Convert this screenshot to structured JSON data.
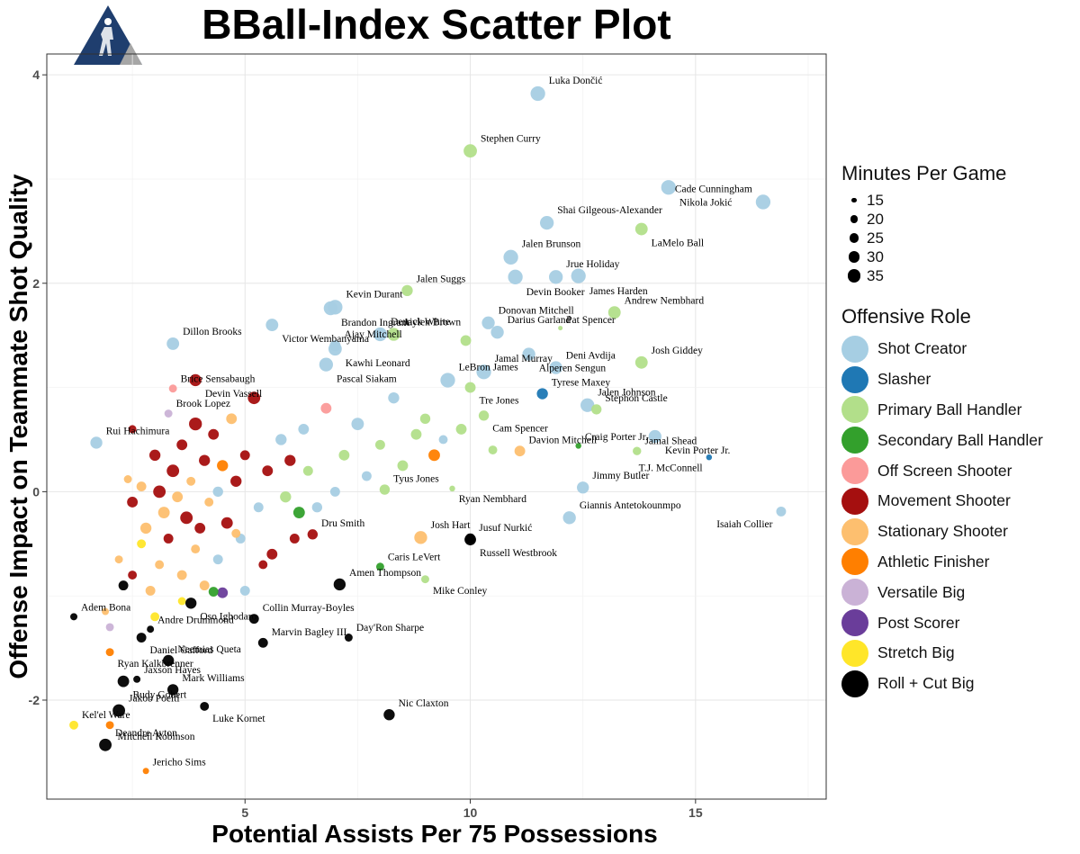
{
  "title": "BBall-Index Scatter Plot",
  "logo": {
    "icon": "basketball-player-icon",
    "colors": [
      "#1f3e6e",
      "#a6a6a6"
    ]
  },
  "legend": {
    "size_title": "Minutes Per Game",
    "size_items": [
      15,
      20,
      25,
      30,
      35
    ],
    "role_title": "Offensive Role",
    "roles": [
      {
        "label": "Shot Creator",
        "color": "#a6cee3"
      },
      {
        "label": "Slasher",
        "color": "#1f78b4"
      },
      {
        "label": "Primary Ball Handler",
        "color": "#b2df8a"
      },
      {
        "label": "Secondary Ball Handler",
        "color": "#33a02c"
      },
      {
        "label": "Off Screen Shooter",
        "color": "#fb9a99"
      },
      {
        "label": "Movement Shooter",
        "color": "#a50f0f"
      },
      {
        "label": "Stationary Shooter",
        "color": "#fdbf6f"
      },
      {
        "label": "Athletic Finisher",
        "color": "#ff7f00"
      },
      {
        "label": "Versatile Big",
        "color": "#cab2d6"
      },
      {
        "label": "Post Scorer",
        "color": "#6a3d9a"
      },
      {
        "label": "Stretch Big",
        "color": "#ffe629"
      },
      {
        "label": "Roll + Cut Big",
        "color": "#000000"
      }
    ]
  },
  "chart_data": {
    "type": "scatter",
    "title": "BBall-Index Scatter Plot",
    "xlabel": "Potential Assists Per 75 Possessions",
    "ylabel": "Offense Impact on Teammate Shot Quality",
    "xlim": [
      0.6,
      17.9
    ],
    "ylim": [
      -2.95,
      4.2
    ],
    "xticks": [
      5,
      10,
      15
    ],
    "yticks": [
      -2,
      0,
      2,
      4
    ],
    "grid": true,
    "legend_position": "right",
    "labeled_points": [
      {
        "name": "Luka Dončić",
        "x": 11.5,
        "y": 3.82,
        "role": "Shot Creator",
        "mpg": 35
      },
      {
        "name": "Stephen Curry",
        "x": 10.0,
        "y": 3.27,
        "role": "Primary Ball Handler",
        "mpg": 32
      },
      {
        "name": "Nikola Jokić",
        "x": 14.4,
        "y": 2.92,
        "role": "Shot Creator",
        "mpg": 35
      },
      {
        "name": "Cade Cunningham",
        "x": 16.5,
        "y": 2.78,
        "role": "Shot Creator",
        "mpg": 35
      },
      {
        "name": "Shai Gilgeous-Alexander",
        "x": 11.7,
        "y": 2.58,
        "role": "Shot Creator",
        "mpg": 33
      },
      {
        "name": "LaMelo Ball",
        "x": 13.8,
        "y": 2.52,
        "role": "Primary Ball Handler",
        "mpg": 30
      },
      {
        "name": "Jalen Brunson",
        "x": 10.9,
        "y": 2.25,
        "role": "Shot Creator",
        "mpg": 35
      },
      {
        "name": "Jrue Holiday",
        "x": 11.9,
        "y": 2.06,
        "role": "Shot Creator",
        "mpg": 33
      },
      {
        "name": "James Harden",
        "x": 12.4,
        "y": 2.07,
        "role": "Shot Creator",
        "mpg": 35
      },
      {
        "name": "Andrew Nembhard",
        "x": 13.2,
        "y": 1.72,
        "role": "Primary Ball Handler",
        "mpg": 30
      },
      {
        "name": "Jalen Suggs",
        "x": 8.6,
        "y": 1.93,
        "role": "Primary Ball Handler",
        "mpg": 27
      },
      {
        "name": "Devin Booker",
        "x": 11.0,
        "y": 2.06,
        "role": "Shot Creator",
        "mpg": 35
      },
      {
        "name": "Donovan Mitchell",
        "x": 10.4,
        "y": 1.62,
        "role": "Shot Creator",
        "mpg": 31
      },
      {
        "name": "Kevin Durant",
        "x": 7.0,
        "y": 1.77,
        "role": "Shot Creator",
        "mpg": 35
      },
      {
        "name": "Brandon Ingram",
        "x": 6.9,
        "y": 1.76,
        "role": "Shot Creator",
        "mpg": 33
      },
      {
        "name": "Darius Garland",
        "x": 10.6,
        "y": 1.53,
        "role": "Shot Creator",
        "mpg": 31
      },
      {
        "name": "Pat Spencer",
        "x": 12.0,
        "y": 1.57,
        "role": "Primary Ball Handler",
        "mpg": 12
      },
      {
        "name": "Victor Wembanyama",
        "x": 5.6,
        "y": 1.6,
        "role": "Shot Creator",
        "mpg": 30
      },
      {
        "name": "Jaylen Brown",
        "x": 8.3,
        "y": 1.51,
        "role": "Primary Ball Handler",
        "mpg": 31
      },
      {
        "name": "Ajay Mitchell",
        "x": 7.0,
        "y": 1.4,
        "role": "Shot Creator",
        "mpg": 27
      },
      {
        "name": "Alperen Sengun",
        "x": 11.3,
        "y": 1.32,
        "role": "Shot Creator",
        "mpg": 31
      },
      {
        "name": "Derrick White",
        "x": 8.0,
        "y": 1.51,
        "role": "Shot Creator",
        "mpg": 33
      },
      {
        "name": "Dillon Brooks",
        "x": 3.4,
        "y": 1.42,
        "role": "Shot Creator",
        "mpg": 30
      },
      {
        "name": "Kawhi Leonard",
        "x": 7.0,
        "y": 1.37,
        "role": "Shot Creator",
        "mpg": 32
      },
      {
        "name": "Deni Avdija",
        "x": 11.9,
        "y": 1.19,
        "role": "Shot Creator",
        "mpg": 31
      },
      {
        "name": "Josh Giddey",
        "x": 13.8,
        "y": 1.24,
        "role": "Primary Ball Handler",
        "mpg": 30
      },
      {
        "name": "Pascal Siakam",
        "x": 6.8,
        "y": 1.22,
        "role": "Shot Creator",
        "mpg": 33
      },
      {
        "name": "Jamal Murray",
        "x": 10.3,
        "y": 1.15,
        "role": "Shot Creator",
        "mpg": 35
      },
      {
        "name": "LeBron James",
        "x": 9.5,
        "y": 1.07,
        "role": "Shot Creator",
        "mpg": 35
      },
      {
        "name": "Devin Vassell",
        "x": 3.9,
        "y": 1.07,
        "role": "Movement Shooter",
        "mpg": 29
      },
      {
        "name": "Tyrese Maxey",
        "x": 11.6,
        "y": 0.94,
        "role": "Slasher",
        "mpg": 27
      },
      {
        "name": "Jalen Johnson",
        "x": 12.6,
        "y": 0.83,
        "role": "Shot Creator",
        "mpg": 33
      },
      {
        "name": "Tre Jones",
        "x": 10.0,
        "y": 1.0,
        "role": "Primary Ball Handler",
        "mpg": 26
      },
      {
        "name": "Brice Sensabaugh",
        "x": 3.4,
        "y": 0.99,
        "role": "Off Screen Shooter",
        "mpg": 20
      },
      {
        "name": "Stephon Castle",
        "x": 12.8,
        "y": 0.79,
        "role": "Primary Ball Handler",
        "mpg": 25
      },
      {
        "name": "Cam Spencer",
        "x": 10.3,
        "y": 0.73,
        "role": "Primary Ball Handler",
        "mpg": 25
      },
      {
        "name": "Brook Lopez",
        "x": 3.3,
        "y": 0.75,
        "role": "Versatile Big",
        "mpg": 20
      },
      {
        "name": "Craig Porter Jr.",
        "x": 12.4,
        "y": 0.44,
        "role": "Secondary Ball Handler",
        "mpg": 15
      },
      {
        "name": "Kevin Porter Jr.",
        "x": 14.1,
        "y": 0.53,
        "role": "Shot Creator",
        "mpg": 31
      },
      {
        "name": "Rui Hachimura",
        "x": 1.7,
        "y": 0.47,
        "role": "Shot Creator",
        "mpg": 29
      },
      {
        "name": "Jamal Shead",
        "x": 13.7,
        "y": 0.39,
        "role": "Primary Ball Handler",
        "mpg": 21
      },
      {
        "name": "T.J. McConnell",
        "x": 15.3,
        "y": 0.33,
        "role": "Slasher",
        "mpg": 15
      },
      {
        "name": "Davion Mitchell",
        "x": 11.1,
        "y": 0.39,
        "role": "Stationary Shooter",
        "mpg": 26
      },
      {
        "name": "Jimmy Butler",
        "x": 12.5,
        "y": 0.04,
        "role": "Shot Creator",
        "mpg": 29
      },
      {
        "name": "Ryan Nembhard",
        "x": 9.6,
        "y": 0.03,
        "role": "Primary Ball Handler",
        "mpg": 15
      },
      {
        "name": "Giannis Antetokounmpo",
        "x": 12.2,
        "y": -0.25,
        "role": "Shot Creator",
        "mpg": 31
      },
      {
        "name": "Tyus Jones",
        "x": 8.1,
        "y": 0.02,
        "role": "Primary Ball Handler",
        "mpg": 25
      },
      {
        "name": "Isaiah Collier",
        "x": 16.9,
        "y": -0.19,
        "role": "Shot Creator",
        "mpg": 24
      },
      {
        "name": "Dru Smith",
        "x": 6.5,
        "y": -0.41,
        "role": "Movement Shooter",
        "mpg": 25
      },
      {
        "name": "Josh Hart",
        "x": 8.9,
        "y": -0.44,
        "role": "Stationary Shooter",
        "mpg": 31
      },
      {
        "name": "Russell Westbrook",
        "x": 10.0,
        "y": -0.46,
        "role": "Roll + Cut Big",
        "mpg": 28
      },
      {
        "name": "Jusuf Nurkić",
        "x": 10.0,
        "y": -0.45,
        "role": "Roll + Cut Big",
        "mpg": 25
      },
      {
        "name": "Caris LeVert",
        "x": 8.0,
        "y": -0.72,
        "role": "Secondary Ball Handler",
        "mpg": 20
      },
      {
        "name": "Mike Conley",
        "x": 9.0,
        "y": -0.84,
        "role": "Primary Ball Handler",
        "mpg": 20
      },
      {
        "name": "Amen Thompson",
        "x": 7.1,
        "y": -0.89,
        "role": "Roll + Cut Big",
        "mpg": 29
      },
      {
        "name": "Adem Bona",
        "x": 1.2,
        "y": -1.2,
        "role": "Roll + Cut Big",
        "mpg": 18
      },
      {
        "name": "Oso Ighodaro",
        "x": 3.8,
        "y": -1.07,
        "role": "Roll + Cut Big",
        "mpg": 27
      },
      {
        "name": "Collin Murray-Boyles",
        "x": 5.2,
        "y": -1.22,
        "role": "Roll + Cut Big",
        "mpg": 24
      },
      {
        "name": "Andre Drummond",
        "x": 2.9,
        "y": -1.32,
        "role": "Roll + Cut Big",
        "mpg": 18
      },
      {
        "name": "Daniel Gafford",
        "x": 2.7,
        "y": -1.4,
        "role": "Roll + Cut Big",
        "mpg": 24
      },
      {
        "name": "Day'Ron Sharpe",
        "x": 7.3,
        "y": -1.4,
        "role": "Roll + Cut Big",
        "mpg": 20
      },
      {
        "name": "Marvin Bagley III",
        "x": 5.4,
        "y": -1.45,
        "role": "Roll + Cut Big",
        "mpg": 24
      },
      {
        "name": "Ryan Kalkbrenner",
        "x": 2.0,
        "y": -1.54,
        "role": "Athletic Finisher",
        "mpg": 20
      },
      {
        "name": "Neemias Queta",
        "x": 3.3,
        "y": -1.62,
        "role": "Roll + Cut Big",
        "mpg": 27
      },
      {
        "name": "Jaxson Hayes",
        "x": 2.6,
        "y": -1.8,
        "role": "Roll + Cut Big",
        "mpg": 18
      },
      {
        "name": "Rudy Gobert",
        "x": 2.3,
        "y": -1.82,
        "role": "Roll + Cut Big",
        "mpg": 28
      },
      {
        "name": "Mark Williams",
        "x": 3.4,
        "y": -1.9,
        "role": "Roll + Cut Big",
        "mpg": 27
      },
      {
        "name": "Jakob Poeltl",
        "x": 2.2,
        "y": -2.1,
        "role": "Roll + Cut Big",
        "mpg": 30
      },
      {
        "name": "Luke Kornet",
        "x": 4.1,
        "y": -2.06,
        "role": "Roll + Cut Big",
        "mpg": 22
      },
      {
        "name": "Kel'el Ware",
        "x": 1.2,
        "y": -2.24,
        "role": "Stretch Big",
        "mpg": 22
      },
      {
        "name": "Nic Claxton",
        "x": 8.2,
        "y": -2.14,
        "role": "Roll + Cut Big",
        "mpg": 27
      },
      {
        "name": "Mitchell Robinson",
        "x": 2.0,
        "y": -2.24,
        "role": "Athletic Finisher",
        "mpg": 20
      },
      {
        "name": "Deandre Ayton",
        "x": 1.9,
        "y": -2.43,
        "role": "Roll + Cut Big",
        "mpg": 30
      },
      {
        "name": "Jericho Sims",
        "x": 2.8,
        "y": -2.68,
        "role": "Athletic Finisher",
        "mpg": 16
      }
    ],
    "other_points": [
      {
        "x": 2.5,
        "y": 0.6,
        "role": "Movement Shooter",
        "mpg": 20
      },
      {
        "x": 2.4,
        "y": 0.12,
        "role": "Stationary Shooter",
        "mpg": 20
      },
      {
        "x": 2.5,
        "y": -0.1,
        "role": "Movement Shooter",
        "mpg": 26
      },
      {
        "x": 2.7,
        "y": 0.05,
        "role": "Stationary Shooter",
        "mpg": 24
      },
      {
        "x": 2.8,
        "y": -0.35,
        "role": "Stationary Shooter",
        "mpg": 27
      },
      {
        "x": 3.0,
        "y": 0.35,
        "role": "Movement Shooter",
        "mpg": 27
      },
      {
        "x": 3.1,
        "y": 0.0,
        "role": "Movement Shooter",
        "mpg": 30
      },
      {
        "x": 3.2,
        "y": -0.2,
        "role": "Stationary Shooter",
        "mpg": 28
      },
      {
        "x": 3.4,
        "y": 0.2,
        "role": "Movement Shooter",
        "mpg": 30
      },
      {
        "x": 3.5,
        "y": -0.05,
        "role": "Stationary Shooter",
        "mpg": 26
      },
      {
        "x": 3.6,
        "y": 0.45,
        "role": "Movement Shooter",
        "mpg": 26
      },
      {
        "x": 3.7,
        "y": -0.25,
        "role": "Movement Shooter",
        "mpg": 30
      },
      {
        "x": 3.8,
        "y": 0.1,
        "role": "Stationary Shooter",
        "mpg": 22
      },
      {
        "x": 3.9,
        "y": 0.65,
        "role": "Movement Shooter",
        "mpg": 31
      },
      {
        "x": 4.0,
        "y": -0.35,
        "role": "Movement Shooter",
        "mpg": 26
      },
      {
        "x": 4.1,
        "y": 0.3,
        "role": "Movement Shooter",
        "mpg": 27
      },
      {
        "x": 4.2,
        "y": -0.1,
        "role": "Stationary Shooter",
        "mpg": 22
      },
      {
        "x": 4.3,
        "y": 0.55,
        "role": "Movement Shooter",
        "mpg": 26
      },
      {
        "x": 4.4,
        "y": 0.0,
        "role": "Shot Creator",
        "mpg": 25
      },
      {
        "x": 4.5,
        "y": 0.25,
        "role": "Athletic Finisher",
        "mpg": 27
      },
      {
        "x": 4.6,
        "y": -0.3,
        "role": "Movement Shooter",
        "mpg": 28
      },
      {
        "x": 4.7,
        "y": 0.7,
        "role": "Stationary Shooter",
        "mpg": 26
      },
      {
        "x": 4.8,
        "y": 0.1,
        "role": "Movement Shooter",
        "mpg": 27
      },
      {
        "x": 4.9,
        "y": -0.45,
        "role": "Shot Creator",
        "mpg": 24
      },
      {
        "x": 5.0,
        "y": 0.35,
        "role": "Movement Shooter",
        "mpg": 24
      },
      {
        "x": 5.2,
        "y": 0.9,
        "role": "Movement Shooter",
        "mpg": 30
      },
      {
        "x": 5.3,
        "y": -0.15,
        "role": "Shot Creator",
        "mpg": 24
      },
      {
        "x": 5.5,
        "y": 0.2,
        "role": "Movement Shooter",
        "mpg": 26
      },
      {
        "x": 5.6,
        "y": -0.6,
        "role": "Movement Shooter",
        "mpg": 26
      },
      {
        "x": 5.8,
        "y": 0.5,
        "role": "Shot Creator",
        "mpg": 27
      },
      {
        "x": 5.9,
        "y": -0.05,
        "role": "Primary Ball Handler",
        "mpg": 27
      },
      {
        "x": 6.0,
        "y": 0.3,
        "role": "Movement Shooter",
        "mpg": 27
      },
      {
        "x": 6.1,
        "y": -0.45,
        "role": "Movement Shooter",
        "mpg": 24
      },
      {
        "x": 6.2,
        "y": -0.2,
        "role": "Secondary Ball Handler",
        "mpg": 28
      },
      {
        "x": 6.3,
        "y": 0.6,
        "role": "Shot Creator",
        "mpg": 26
      },
      {
        "x": 6.4,
        "y": 0.2,
        "role": "Primary Ball Handler",
        "mpg": 24
      },
      {
        "x": 6.6,
        "y": -0.15,
        "role": "Shot Creator",
        "mpg": 25
      },
      {
        "x": 6.8,
        "y": 0.8,
        "role": "Off Screen Shooter",
        "mpg": 26
      },
      {
        "x": 7.0,
        "y": 0.0,
        "role": "Shot Creator",
        "mpg": 24
      },
      {
        "x": 7.2,
        "y": 0.35,
        "role": "Primary Ball Handler",
        "mpg": 26
      },
      {
        "x": 7.5,
        "y": 0.65,
        "role": "Shot Creator",
        "mpg": 30
      },
      {
        "x": 7.7,
        "y": 0.15,
        "role": "Shot Creator",
        "mpg": 24
      },
      {
        "x": 8.0,
        "y": 0.45,
        "role": "Primary Ball Handler",
        "mpg": 24
      },
      {
        "x": 8.3,
        "y": 0.9,
        "role": "Shot Creator",
        "mpg": 27
      },
      {
        "x": 8.5,
        "y": 0.25,
        "role": "Primary Ball Handler",
        "mpg": 26
      },
      {
        "x": 8.8,
        "y": 0.55,
        "role": "Primary Ball Handler",
        "mpg": 26
      },
      {
        "x": 9.0,
        "y": 0.7,
        "role": "Primary Ball Handler",
        "mpg": 25
      },
      {
        "x": 9.2,
        "y": 0.35,
        "role": "Athletic Finisher",
        "mpg": 28
      },
      {
        "x": 9.4,
        "y": 0.5,
        "role": "Shot Creator",
        "mpg": 22
      },
      {
        "x": 9.8,
        "y": 0.6,
        "role": "Primary Ball Handler",
        "mpg": 26
      },
      {
        "x": 9.9,
        "y": 1.45,
        "role": "Primary Ball Handler",
        "mpg": 26
      },
      {
        "x": 10.5,
        "y": 0.4,
        "role": "Primary Ball Handler",
        "mpg": 22
      },
      {
        "x": 2.2,
        "y": -0.65,
        "role": "Stationary Shooter",
        "mpg": 20
      },
      {
        "x": 2.5,
        "y": -0.8,
        "role": "Movement Shooter",
        "mpg": 22
      },
      {
        "x": 2.7,
        "y": -0.5,
        "role": "Stretch Big",
        "mpg": 22
      },
      {
        "x": 2.9,
        "y": -0.95,
        "role": "Stationary Shooter",
        "mpg": 24
      },
      {
        "x": 3.1,
        "y": -0.7,
        "role": "Stationary Shooter",
        "mpg": 22
      },
      {
        "x": 3.3,
        "y": -0.45,
        "role": "Movement Shooter",
        "mpg": 24
      },
      {
        "x": 3.6,
        "y": -0.8,
        "role": "Stationary Shooter",
        "mpg": 24
      },
      {
        "x": 3.9,
        "y": -0.55,
        "role": "Stationary Shooter",
        "mpg": 22
      },
      {
        "x": 4.1,
        "y": -0.9,
        "role": "Stationary Shooter",
        "mpg": 24
      },
      {
        "x": 4.4,
        "y": -0.65,
        "role": "Shot Creator",
        "mpg": 24
      },
      {
        "x": 4.5,
        "y": -0.97,
        "role": "Post Scorer",
        "mpg": 26
      },
      {
        "x": 4.3,
        "y": -0.96,
        "role": "Secondary Ball Handler",
        "mpg": 24
      },
      {
        "x": 4.8,
        "y": -0.4,
        "role": "Stationary Shooter",
        "mpg": 22
      },
      {
        "x": 5.0,
        "y": -0.95,
        "role": "Shot Creator",
        "mpg": 24
      },
      {
        "x": 5.4,
        "y": -0.7,
        "role": "Movement Shooter",
        "mpg": 22
      },
      {
        "x": 1.9,
        "y": -1.15,
        "role": "Stationary Shooter",
        "mpg": 18
      },
      {
        "x": 2.0,
        "y": -1.3,
        "role": "Versatile Big",
        "mpg": 20
      },
      {
        "x": 3.0,
        "y": -1.2,
        "role": "Stretch Big",
        "mpg": 22
      },
      {
        "x": 3.6,
        "y": -1.05,
        "role": "Stretch Big",
        "mpg": 20
      },
      {
        "x": 2.3,
        "y": -0.9,
        "role": "Roll + Cut Big",
        "mpg": 24
      }
    ]
  }
}
